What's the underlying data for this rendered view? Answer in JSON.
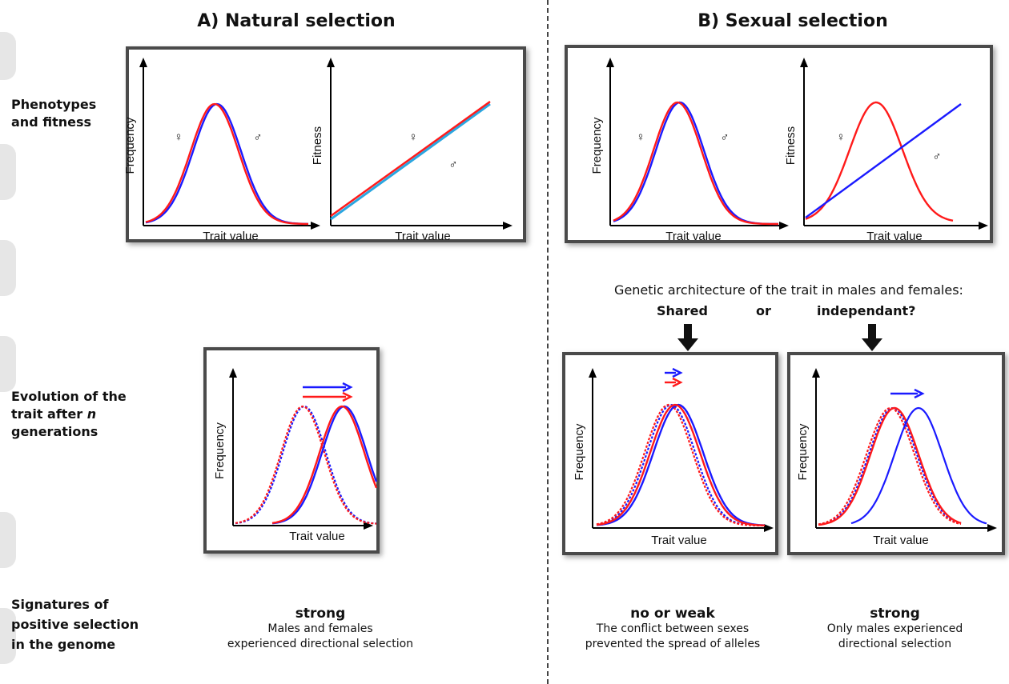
{
  "panel_a": {
    "title": "A) Natural selection"
  },
  "panel_b": {
    "title": "B) Sexual selection"
  },
  "row_labels": {
    "phenotypes": [
      "Phenotypes",
      "and fitness"
    ],
    "evolution": [
      "Evolution of the",
      "trait after n",
      "generations"
    ],
    "signatures": [
      "Signatures of",
      "positive  selection",
      "in the genome"
    ]
  },
  "symbols": {
    "female": "♀",
    "male": "♂"
  },
  "axis": {
    "frequency": "Frequency",
    "fitness": "Fitness",
    "trait_value": "Trait value"
  },
  "genetic_architecture": {
    "question": "Genetic architecture of the trait in males and females:",
    "shared": "Shared",
    "or": "or",
    "independent": "independant?"
  },
  "verdicts": {
    "natural": {
      "headline": "strong",
      "line1": "Males and females",
      "line2": "experienced directional selection"
    },
    "shared": {
      "headline": "no or weak",
      "line1": "The conflict between sexes",
      "line2": "prevented the spread of alleles"
    },
    "independent": {
      "headline": "strong",
      "line1": "Only males experienced",
      "line2": "directional selection"
    }
  },
  "colors": {
    "female": "#ff1a1a",
    "male": "#1a1aff",
    "male_fitness": "#2aa6e0",
    "axis": "#000000",
    "box_border": "#4a4a4a"
  }
}
